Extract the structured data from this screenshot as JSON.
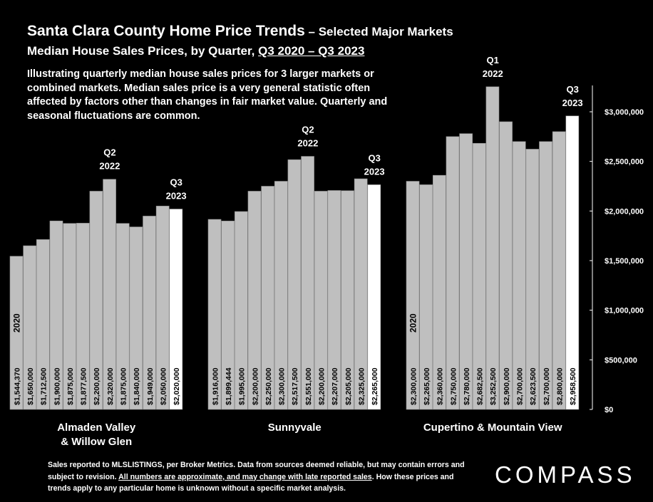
{
  "header": {
    "title": "Santa Clara County Home Price Trends",
    "title_suffix": " – Selected Major Markets",
    "subtitle_prefix": "Median House Sales Prices, by Quarter, ",
    "subtitle_range": "Q3 2020 – Q3 2023",
    "description": "Illustrating quarterly median house sales prices for 3 larger markets or combined markets. Median sales price is a very general statistic often affected by factors other than changes in fair market value. Quarterly and seasonal fluctuations are common."
  },
  "footer": {
    "text1": "Sales reported to MLSLISTINGS, per Broker Metrics. Data from sources deemed reliable, but may contain errors and subject to revision. ",
    "text2": "All numbers are approximate, and may change with late reported sales",
    "text3": ". How these prices and trends apply to any particular home is unknown without a specific market analysis.",
    "logo": "COMPASS"
  },
  "colors": {
    "bar": "#bfbfbf",
    "highlight_bar": "#ffffff",
    "background": "#000000",
    "text": "#ffffff"
  },
  "chart_data": {
    "type": "bar",
    "ylim": [
      0,
      3300000
    ],
    "y_ticks": [
      "$0",
      "$500,000",
      "$1,000,000",
      "$1,500,000",
      "$2,000,000",
      "$2,500,000",
      "$3,000,000"
    ],
    "y_tick_values": [
      0,
      500000,
      1000000,
      1500000,
      2000000,
      2500000,
      3000000
    ],
    "grid": false,
    "series": [
      {
        "name": "Almaden Valley & Willow Glen",
        "group_label_lines": [
          "Almaden Valley",
          "& Willow Glen"
        ],
        "year_label": "2020",
        "values": [
          1544370,
          1650000,
          1712500,
          1900000,
          1875000,
          1877500,
          2200000,
          2320000,
          1875000,
          1840000,
          1949000,
          2050000,
          2020000
        ],
        "value_labels": [
          "$1,544,370",
          "$1,650,000",
          "$1,712,500",
          "$1,900,000",
          "$1,875,000",
          "$1,877,500",
          "$2,200,000",
          "$2,320,000",
          "$1,875,000",
          "$1,840,000",
          "$1,949,000",
          "$2,050,000",
          "$2,020,000"
        ],
        "annotations": [
          {
            "index": 7,
            "lines": [
              "Q2",
              "2022"
            ]
          },
          {
            "index": 12,
            "lines": [
              "Q3",
              "2023"
            ]
          }
        ]
      },
      {
        "name": "Sunnyvale",
        "group_label_lines": [
          "Sunnyvale"
        ],
        "year_label": "",
        "values": [
          1916000,
          1899444,
          1995000,
          2200000,
          2250000,
          2300000,
          2517500,
          2551000,
          2200000,
          2207000,
          2205000,
          2325000,
          2265000
        ],
        "value_labels": [
          "$1,916,000",
          "$1,899,444",
          "$1,995,000",
          "$2,200,000",
          "$2,250,000",
          "$2,300,000",
          "$2,517,500",
          "$2,551,000",
          "$2,200,000",
          "$2,207,000",
          "$2,205,000",
          "$2,325,000",
          "$2,265,000"
        ],
        "annotations": [
          {
            "index": 7,
            "lines": [
              "Q2",
              "2022"
            ]
          },
          {
            "index": 12,
            "lines": [
              "Q3",
              "2023"
            ]
          }
        ]
      },
      {
        "name": "Cupertino & Mountain View",
        "group_label_lines": [
          "Cupertino & Mountain View"
        ],
        "year_label": "2020",
        "values": [
          2300000,
          2265000,
          2360000,
          2750000,
          2780000,
          2682500,
          3252500,
          2900000,
          2700000,
          2623500,
          2700000,
          2800000,
          2958500
        ],
        "value_labels": [
          "$2,300,000",
          "$2,265,000",
          "$2,360,000",
          "$2,750,000",
          "$2,780,000",
          "$2,682,500",
          "$3,252,500",
          "$2,900,000",
          "$2,700,000",
          "$2,623,500",
          "$2,700,000",
          "$2,800,000",
          "$2,958,500"
        ],
        "annotations": [
          {
            "index": 6,
            "lines": [
              "Q1",
              "2022"
            ]
          },
          {
            "index": 12,
            "lines": [
              "Q3",
              "2023"
            ]
          }
        ]
      }
    ]
  }
}
